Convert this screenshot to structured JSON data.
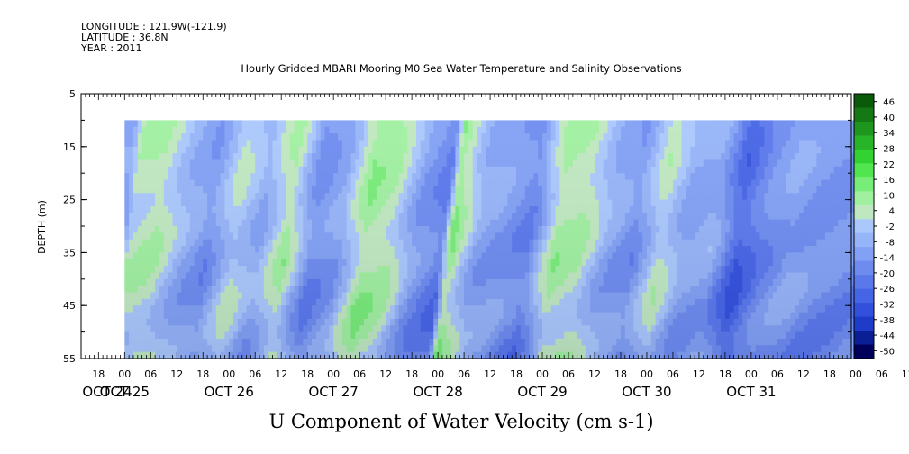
{
  "header": {
    "longitude": "LONGITUDE : 121.9W(-121.9)",
    "latitude": "LATITUDE : 36.8N",
    "year": "YEAR : 2011"
  },
  "chart_data": {
    "type": "heatmap",
    "title": "Hourly Gridded MBARI Mooring M0 Sea Water Temperature and Salinity Observations",
    "variable_title": "U Component of Water Velocity (cm s-1)",
    "ylabel": "DEPTH (m)",
    "ylim": [
      55,
      5
    ],
    "y_ticks": [
      5,
      15,
      25,
      35,
      45,
      55
    ],
    "data_depth_range": [
      10,
      55
    ],
    "x_range": [
      "2011-10-24 14:00",
      "2011-10-31 23:00"
    ],
    "data_time_start": "2011-10-25 00:00",
    "x_hour_labels": [
      "18",
      "00",
      "06",
      "12",
      "18",
      "00",
      "06",
      "12",
      "18",
      "00",
      "06",
      "12",
      "18",
      "00",
      "06",
      "12",
      "18",
      "00",
      "06",
      "12",
      "18",
      "00",
      "06",
      "12",
      "18",
      "00",
      "06",
      "12",
      "18",
      "00",
      "06",
      "12",
      "18"
    ],
    "x_day_labels": [
      "OCT 24",
      "OCT 25",
      "OCT 26",
      "OCT 27",
      "OCT 28",
      "OCT 29",
      "OCT 30",
      "OCT 31"
    ],
    "colorbar": {
      "labels": [
        "46",
        "40",
        "34",
        "28",
        "22",
        "16",
        "10",
        "4",
        "-2",
        "-8",
        "-14",
        "-20",
        "-26",
        "-32",
        "-38",
        "-44",
        "-50"
      ],
      "range": [
        -50,
        50
      ],
      "colors": [
        "#00005a",
        "#0a1e96",
        "#1e3cc8",
        "#3250dc",
        "#4664e6",
        "#5a78ec",
        "#6e8cf0",
        "#82a0f4",
        "#96b4f8",
        "#aac8fc",
        "#c0e8c0",
        "#a0f0a0",
        "#78ec78",
        "#50e650",
        "#32d232",
        "#28b428",
        "#1e961e",
        "#147814",
        "#0a5a0a"
      ]
    },
    "surface_u_approx": [
      {
        "time": "2011-10-25 02:00",
        "u": -10
      },
      {
        "time": "2011-10-25 04:00",
        "u": 6
      },
      {
        "time": "2011-10-25 10:00",
        "u": 8
      },
      {
        "time": "2011-10-25 16:00",
        "u": -4
      },
      {
        "time": "2011-10-25 22:00",
        "u": -12
      },
      {
        "time": "2011-10-26 04:00",
        "u": 4
      },
      {
        "time": "2011-10-26 10:00",
        "u": -6
      },
      {
        "time": "2011-10-26 16:00",
        "u": 10
      },
      {
        "time": "2011-10-26 22:00",
        "u": -14
      },
      {
        "time": "2011-10-27 04:00",
        "u": -8
      },
      {
        "time": "2011-10-27 10:00",
        "u": 12
      },
      {
        "time": "2011-10-27 16:00",
        "u": 8
      },
      {
        "time": "2011-10-27 22:00",
        "u": -10
      },
      {
        "time": "2011-10-28 04:00",
        "u": -18
      },
      {
        "time": "2011-10-28 06:00",
        "u": 14
      },
      {
        "time": "2011-10-28 12:00",
        "u": -6
      },
      {
        "time": "2011-10-28 18:00",
        "u": -10
      },
      {
        "time": "2011-10-29 00:00",
        "u": -16
      },
      {
        "time": "2011-10-29 06:00",
        "u": 10
      },
      {
        "time": "2011-10-29 12:00",
        "u": 8
      },
      {
        "time": "2011-10-29 18:00",
        "u": -6
      },
      {
        "time": "2011-10-30 00:00",
        "u": -12
      },
      {
        "time": "2011-10-30 06:00",
        "u": 6
      },
      {
        "time": "2011-10-30 12:00",
        "u": -8
      },
      {
        "time": "2011-10-30 18:00",
        "u": -6
      },
      {
        "time": "2011-10-31 00:00",
        "u": -26
      },
      {
        "time": "2011-10-31 06:00",
        "u": -14
      },
      {
        "time": "2011-10-31 12:00",
        "u": -8
      },
      {
        "time": "2011-10-31 18:00",
        "u": -12
      }
    ]
  }
}
